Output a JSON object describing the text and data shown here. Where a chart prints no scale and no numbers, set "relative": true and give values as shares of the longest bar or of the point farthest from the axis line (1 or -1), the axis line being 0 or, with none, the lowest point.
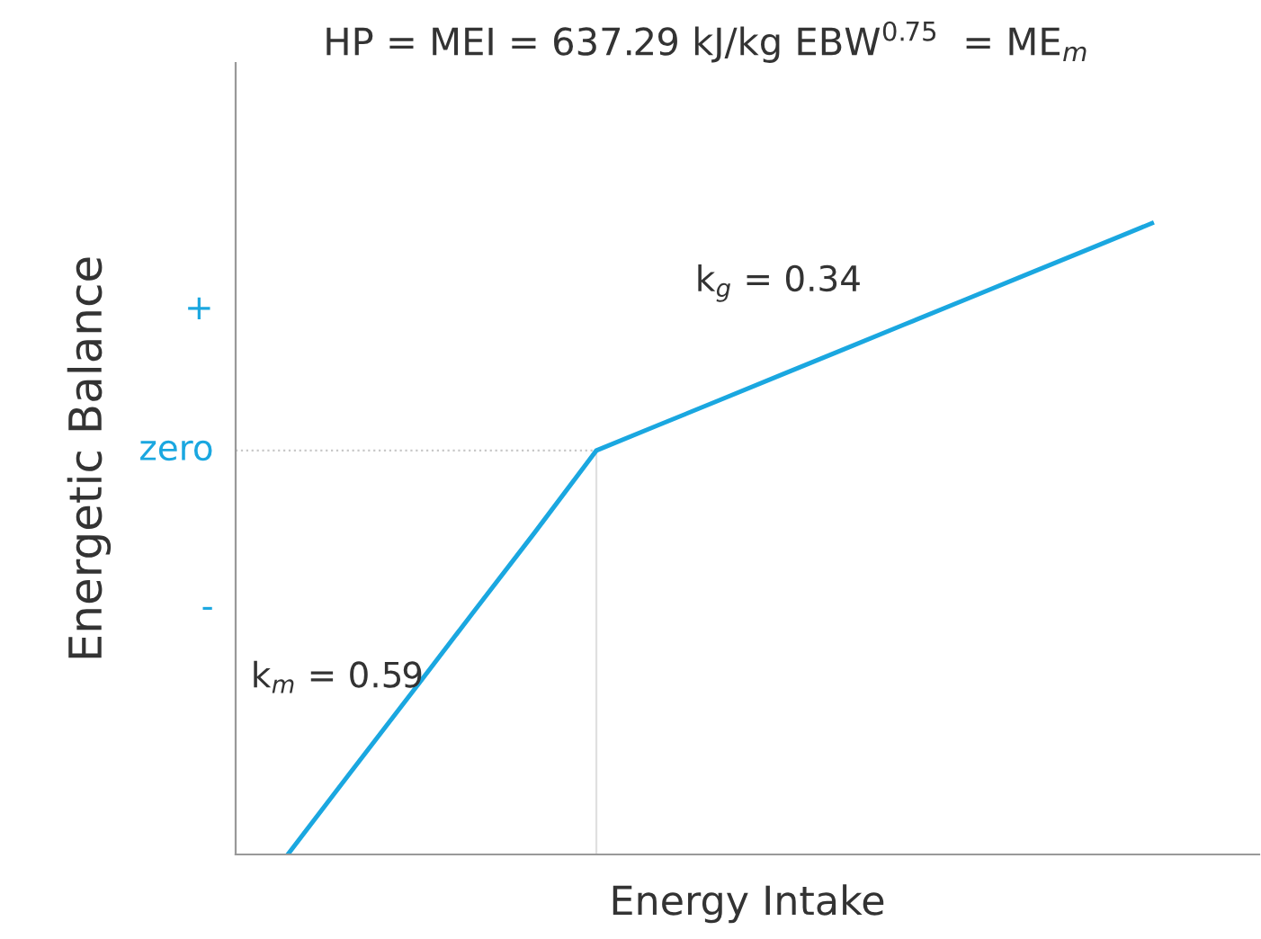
{
  "chart_data": {
    "type": "line",
    "relative": true,
    "title": "HP = MEI = 637.29 kJ/kg EBW$^{0.75}$  = ME$_{m}$",
    "xlabel": "Energy Intake",
    "ylabel": "Energetic Balance",
    "categories": [
      null,
      null,
      null,
      null,
      null,
      null,
      null,
      null,
      null,
      null,
      null,
      null,
      null,
      null,
      null
    ],
    "series": [
      {
        "color": "#1aa7e0",
        "values": [
          0,
          0.128,
          0.255,
          0.383,
          0.51,
          0.64,
          0.68,
          0.72,
          0.76,
          0.8,
          0.84,
          0.88,
          0.92,
          0.96,
          1.0
        ]
      }
    ],
    "ref_lines": [
      {
        "axis": "y",
        "value": 0.64,
        "label": "zero",
        "color": "#c8c8c8",
        "line_style": "dotted"
      }
    ],
    "annotations": [
      "+",
      "-",
      "k$_{m}$ = 0.59",
      "k$_{g}$ = 0.34"
    ],
    "legend": false,
    "marker": "none",
    "line_style": "solid"
  }
}
